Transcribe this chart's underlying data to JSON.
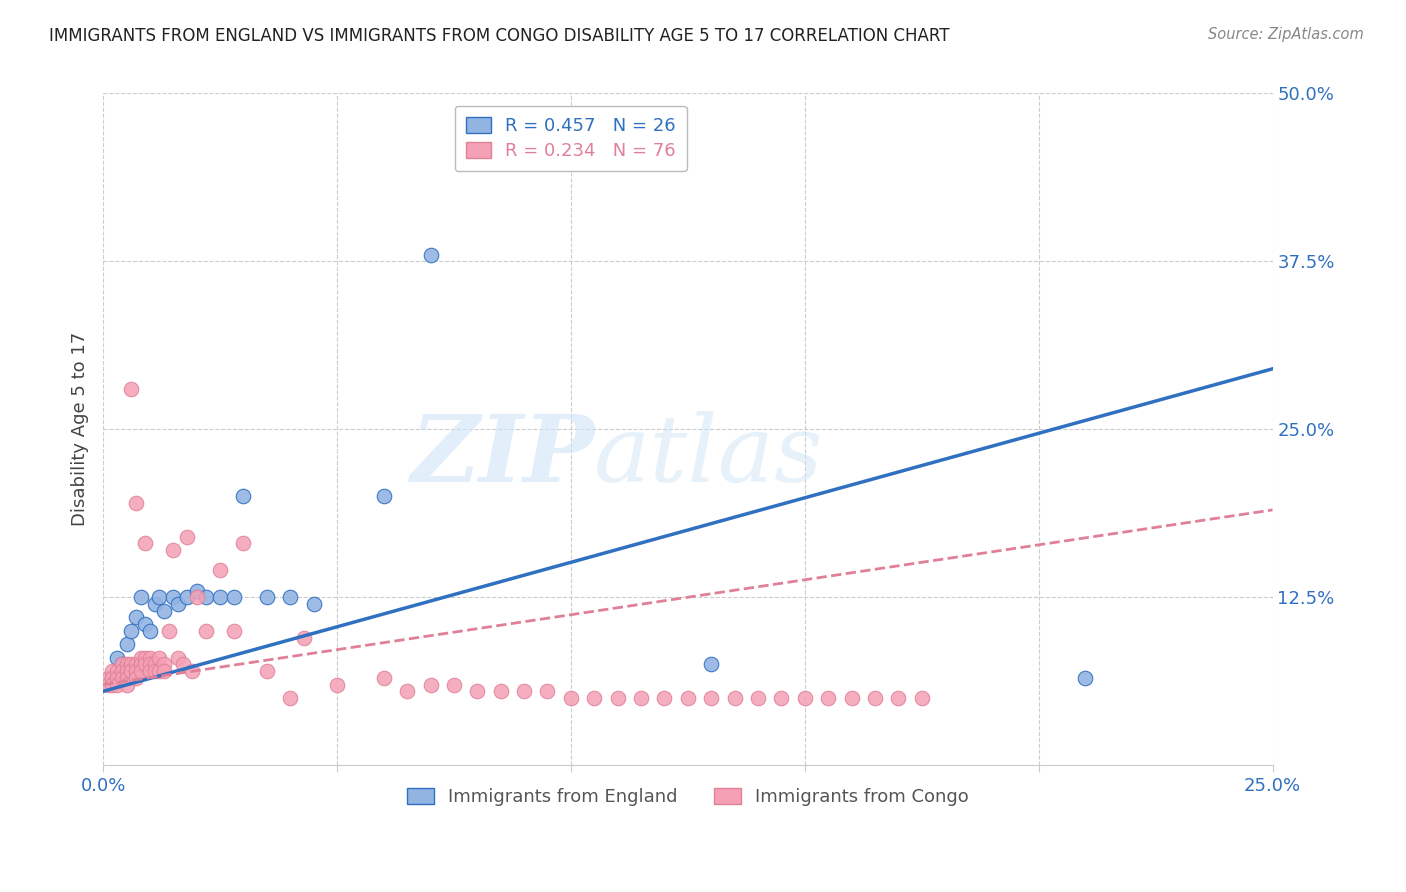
{
  "title": "IMMIGRANTS FROM ENGLAND VS IMMIGRANTS FROM CONGO DISABILITY AGE 5 TO 17 CORRELATION CHART",
  "source": "Source: ZipAtlas.com",
  "ylabel": "Disability Age 5 to 17",
  "xlim": [
    0.0,
    0.25
  ],
  "ylim": [
    0.0,
    0.5
  ],
  "xticks": [
    0.0,
    0.05,
    0.1,
    0.15,
    0.2,
    0.25
  ],
  "yticks": [
    0.0,
    0.125,
    0.25,
    0.375,
    0.5
  ],
  "xticklabels": [
    "0.0%",
    "",
    "",
    "",
    "",
    "25.0%"
  ],
  "yticklabels": [
    "",
    "12.5%",
    "25.0%",
    "37.5%",
    "50.0%"
  ],
  "england_color": "#92b4e3",
  "congo_color": "#f4a0b5",
  "england_line_color": "#3070c0",
  "congo_line_color": "#e08098",
  "watermark_left": "ZIP",
  "watermark_right": "atlas",
  "england_scatter_x": [
    0.003,
    0.004,
    0.005,
    0.006,
    0.007,
    0.008,
    0.009,
    0.01,
    0.011,
    0.012,
    0.013,
    0.015,
    0.016,
    0.018,
    0.02,
    0.022,
    0.025,
    0.028,
    0.03,
    0.035,
    0.04,
    0.045,
    0.06,
    0.07,
    0.13,
    0.21
  ],
  "england_scatter_y": [
    0.08,
    0.075,
    0.09,
    0.1,
    0.11,
    0.125,
    0.105,
    0.1,
    0.12,
    0.125,
    0.115,
    0.125,
    0.12,
    0.125,
    0.13,
    0.125,
    0.125,
    0.125,
    0.2,
    0.125,
    0.125,
    0.12,
    0.2,
    0.38,
    0.075,
    0.065
  ],
  "congo_scatter_x": [
    0.001,
    0.001,
    0.002,
    0.002,
    0.002,
    0.003,
    0.003,
    0.003,
    0.004,
    0.004,
    0.004,
    0.005,
    0.005,
    0.005,
    0.005,
    0.006,
    0.006,
    0.006,
    0.007,
    0.007,
    0.007,
    0.007,
    0.008,
    0.008,
    0.008,
    0.009,
    0.009,
    0.009,
    0.01,
    0.01,
    0.01,
    0.011,
    0.011,
    0.012,
    0.012,
    0.013,
    0.013,
    0.014,
    0.015,
    0.016,
    0.017,
    0.018,
    0.019,
    0.02,
    0.022,
    0.025,
    0.028,
    0.03,
    0.035,
    0.04,
    0.043,
    0.05,
    0.06,
    0.065,
    0.07,
    0.075,
    0.08,
    0.085,
    0.09,
    0.095,
    0.1,
    0.105,
    0.11,
    0.115,
    0.12,
    0.125,
    0.13,
    0.135,
    0.14,
    0.145,
    0.15,
    0.155,
    0.16,
    0.165,
    0.17,
    0.175
  ],
  "congo_scatter_y": [
    0.065,
    0.06,
    0.07,
    0.065,
    0.06,
    0.07,
    0.065,
    0.06,
    0.075,
    0.07,
    0.065,
    0.075,
    0.07,
    0.065,
    0.06,
    0.28,
    0.075,
    0.07,
    0.075,
    0.195,
    0.07,
    0.065,
    0.08,
    0.075,
    0.07,
    0.08,
    0.075,
    0.165,
    0.08,
    0.075,
    0.07,
    0.075,
    0.07,
    0.08,
    0.07,
    0.075,
    0.07,
    0.1,
    0.16,
    0.08,
    0.075,
    0.17,
    0.07,
    0.125,
    0.1,
    0.145,
    0.1,
    0.165,
    0.07,
    0.05,
    0.095,
    0.06,
    0.065,
    0.055,
    0.06,
    0.06,
    0.055,
    0.055,
    0.055,
    0.055,
    0.05,
    0.05,
    0.05,
    0.05,
    0.05,
    0.05,
    0.05,
    0.05,
    0.05,
    0.05,
    0.05,
    0.05,
    0.05,
    0.05,
    0.05,
    0.05
  ],
  "england_line_x": [
    0.0,
    0.25
  ],
  "england_line_y": [
    0.055,
    0.295
  ],
  "congo_line_x": [
    0.0,
    0.25
  ],
  "congo_line_y": [
    0.06,
    0.19
  ],
  "legend_england_label": "R = 0.457   N = 26",
  "legend_congo_label": "R = 0.234   N = 76",
  "legend_bottom_england": "Immigrants from England",
  "legend_bottom_congo": "Immigrants from Congo"
}
